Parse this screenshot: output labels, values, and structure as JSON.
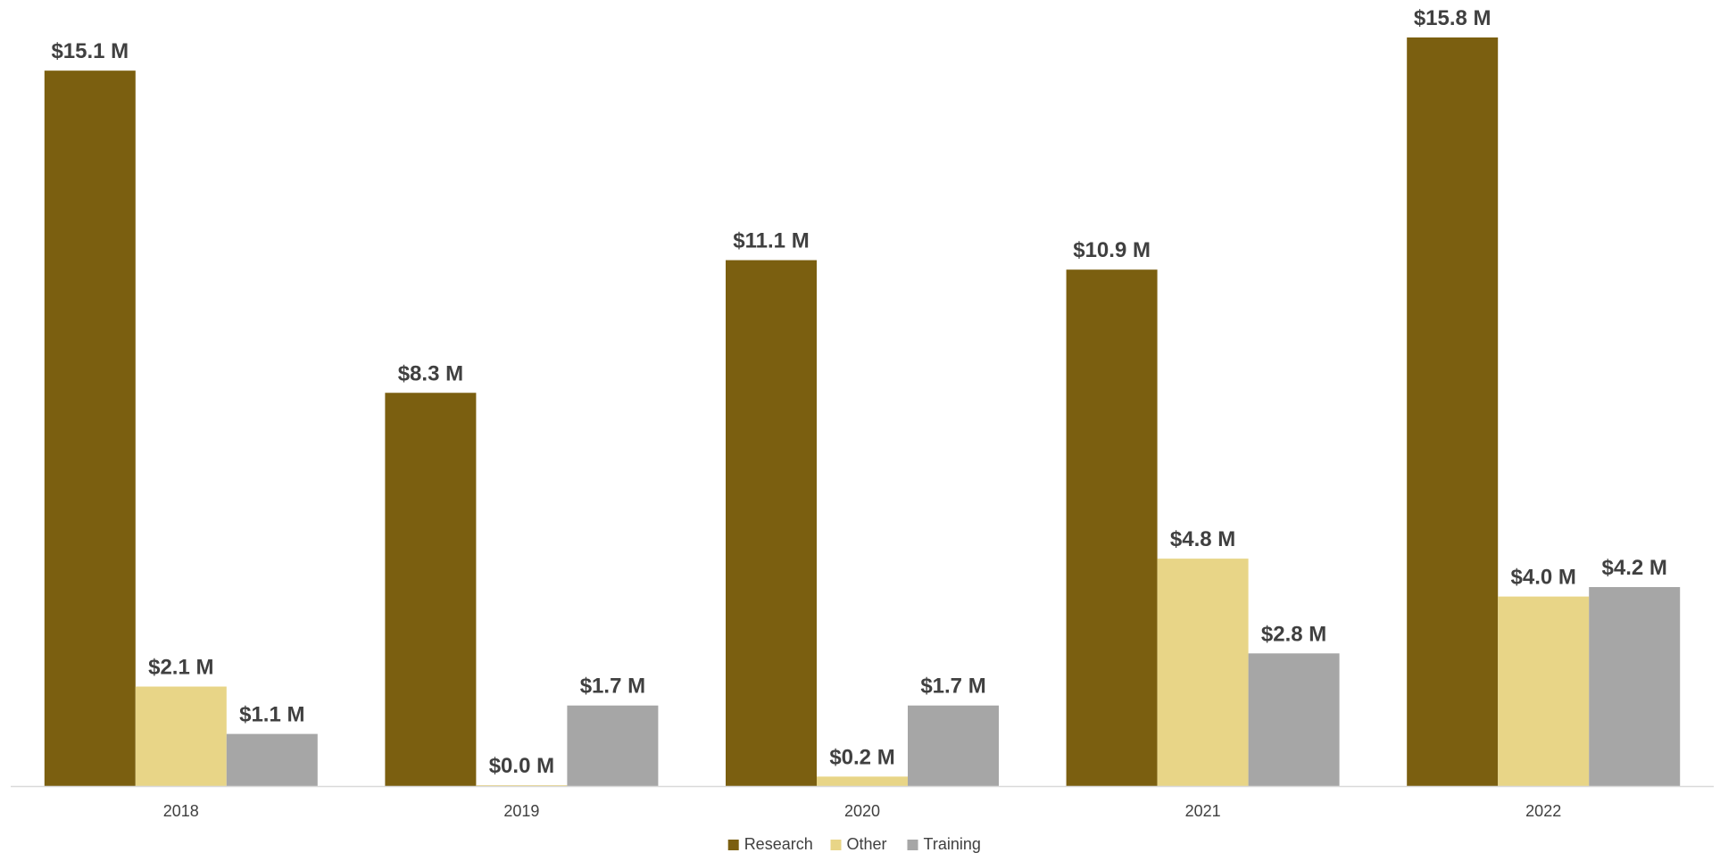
{
  "chart_data": {
    "type": "bar",
    "title": "",
    "xlabel": "",
    "ylabel": "",
    "categories": [
      "2018",
      "2019",
      "2020",
      "2021",
      "2022"
    ],
    "series": [
      {
        "name": "Research",
        "color": "#7B5F10",
        "values": [
          15.1,
          8.3,
          11.1,
          10.9,
          15.8
        ],
        "labels": [
          "$15.1 M",
          "$8.3 M",
          "$11.1 M",
          "$10.9 M",
          "$15.8 M"
        ]
      },
      {
        "name": "Other",
        "color": "#E8D587",
        "values": [
          2.1,
          0.0,
          0.2,
          4.8,
          4.0
        ],
        "labels": [
          "$2.1 M",
          "$0.0 M",
          "$0.2 M",
          "$4.8 M",
          "$4.0 M"
        ]
      },
      {
        "name": "Training",
        "color": "#A6A6A6",
        "values": [
          1.1,
          1.7,
          1.7,
          2.8,
          4.2
        ],
        "labels": [
          "$1.1 M",
          "$1.7 M",
          "$1.7 M",
          "$2.8 M",
          "$4.2 M"
        ]
      }
    ],
    "ylim": [
      0,
      15.8
    ],
    "grid": false,
    "legend": "bottom-center"
  }
}
